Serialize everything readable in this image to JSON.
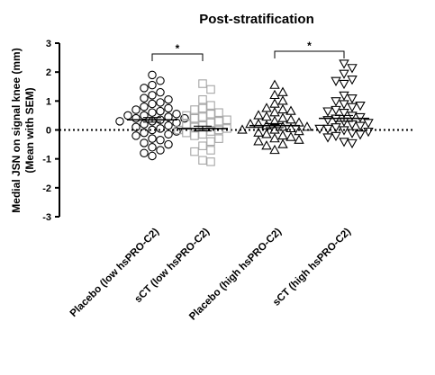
{
  "chart_data": {
    "type": "scatter",
    "title": "Post-stratification",
    "ylabel_lines": [
      "Medial JSN on signal knee (mm)",
      "(Mean with SEM)"
    ],
    "ylim": [
      -3,
      3
    ],
    "yticks": [
      -3,
      -2,
      -1,
      0,
      1,
      2,
      3
    ],
    "reference_line": {
      "y": 0,
      "style": "dotted"
    },
    "categories": [
      "Placebo (low hsPRO-C2)",
      "sCT (low hsPRO-C2)",
      "Placebo (high hsPRO-C2)",
      "sCT (high hsPRO-C2)"
    ],
    "series": [
      {
        "marker": "circle",
        "color": "#000000",
        "mean": 0.35,
        "sem": 0.08,
        "values": [
          1.9,
          1.7,
          1.55,
          1.45,
          1.3,
          1.2,
          1.1,
          1.05,
          0.95,
          0.9,
          0.8,
          0.75,
          0.7,
          0.65,
          0.6,
          0.55,
          0.5,
          0.5,
          0.45,
          0.4,
          0.4,
          0.35,
          0.3,
          0.3,
          0.25,
          0.2,
          0.15,
          0.1,
          0.05,
          0.0,
          -0.05,
          -0.1,
          -0.15,
          -0.2,
          -0.3,
          -0.35,
          -0.45,
          -0.5,
          -0.6,
          -0.7,
          -0.8,
          -0.9
        ]
      },
      {
        "marker": "square",
        "color": "#a6a6a6",
        "mean": 0.05,
        "sem": 0.08,
        "values": [
          1.6,
          1.4,
          1.05,
          0.85,
          0.75,
          0.7,
          0.6,
          0.55,
          0.5,
          0.45,
          0.4,
          0.35,
          0.3,
          0.25,
          0.2,
          0.15,
          0.1,
          0.05,
          0.0,
          0.0,
          -0.05,
          -0.1,
          -0.15,
          -0.2,
          -0.3,
          -0.4,
          -0.55,
          -0.7,
          -0.75,
          -1.05,
          -1.1
        ]
      },
      {
        "marker": "triangle-up",
        "color": "#000000",
        "mean": 0.15,
        "sem": 0.07,
        "values": [
          1.55,
          1.3,
          1.2,
          1.0,
          0.9,
          0.75,
          0.7,
          0.65,
          0.6,
          0.5,
          0.45,
          0.4,
          0.35,
          0.3,
          0.25,
          0.2,
          0.2,
          0.15,
          0.1,
          0.1,
          0.05,
          0.0,
          0.0,
          -0.05,
          -0.1,
          -0.15,
          -0.2,
          -0.25,
          -0.3,
          -0.35,
          -0.4,
          -0.5,
          -0.55,
          -0.7
        ]
      },
      {
        "marker": "triangle-down",
        "color": "#000000",
        "mean": 0.4,
        "sem": 0.1,
        "values": [
          2.3,
          2.15,
          1.95,
          1.75,
          1.7,
          1.6,
          1.2,
          1.1,
          1.0,
          0.9,
          0.85,
          0.8,
          0.7,
          0.65,
          0.6,
          0.5,
          0.45,
          0.4,
          0.35,
          0.3,
          0.25,
          0.2,
          0.15,
          0.1,
          0.05,
          0.05,
          0.0,
          -0.05,
          -0.1,
          -0.15,
          -0.2,
          -0.25,
          -0.4,
          -0.45
        ]
      }
    ],
    "significance": [
      {
        "from": 0,
        "to": 1,
        "label": "*"
      },
      {
        "from": 2,
        "to": 3,
        "label": "*"
      }
    ]
  }
}
